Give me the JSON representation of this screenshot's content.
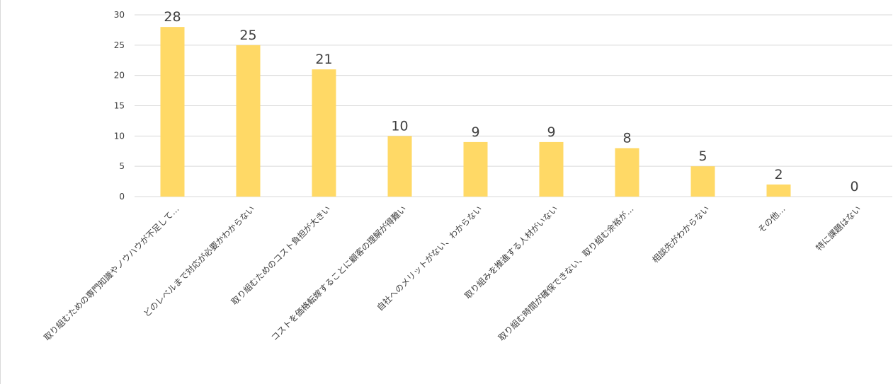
{
  "chart_data": {
    "type": "bar",
    "categories": [
      "取り組むための専門知識やノウハウが不足して…",
      "どのレベルまで対応が必要かわからない",
      "取り組むためのコスト負担が大きい",
      "コストを価格転嫁することに顧客の理解が得難い",
      "自社へのメリットがない、わからない",
      "取り組みを推進する人材がいない",
      "取り組む時間が確保できない、取り組む余裕が…",
      "相談先がわからない",
      "その他…",
      "特に課題はない"
    ],
    "values": [
      28,
      25,
      21,
      10,
      9,
      9,
      8,
      5,
      2,
      0
    ],
    "data_labels": [
      "28",
      "25",
      "21",
      "10",
      "9",
      "9",
      "8",
      "5",
      "2",
      "0"
    ],
    "y_ticks": [
      "0",
      "5",
      "10",
      "15",
      "20",
      "25",
      "30"
    ],
    "ylim": [
      0,
      30
    ],
    "grid": true,
    "bar_color": "#ffd966",
    "gridline_color": "#d9d9d9",
    "text_color": "#404040"
  }
}
